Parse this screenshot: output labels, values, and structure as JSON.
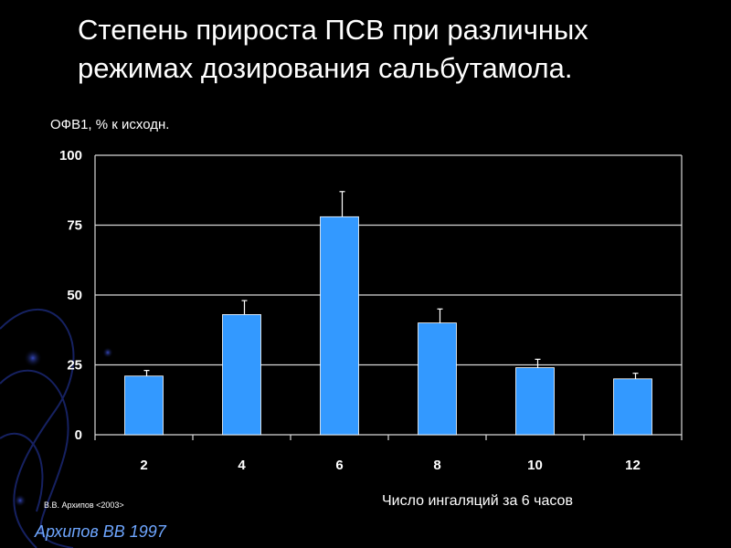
{
  "slide": {
    "title_line1": "Степень прироста ПСВ при различных",
    "title_line2": "режимах дозирования сальбутамола.",
    "credit_small": "В.В. Архипов <2003>",
    "credit_main": "Архипов ВВ 1997",
    "background_color": "#000000",
    "accent_color": "#6ea6ff"
  },
  "chart_data": {
    "type": "bar",
    "title": "",
    "ylabel": "ОФВ1, % к исходн.",
    "xlabel": "Число ингаляций за 6 часов",
    "categories": [
      "2",
      "4",
      "6",
      "8",
      "10",
      "12"
    ],
    "series": [
      {
        "values": [
          21,
          43,
          78,
          40,
          24,
          20
        ],
        "error_upper": [
          23,
          48,
          87,
          45,
          27,
          22
        ],
        "color": "#3399ff"
      }
    ],
    "ylim": [
      0,
      100
    ],
    "yticks": [
      "0",
      "25",
      "50",
      "75",
      "100"
    ],
    "grid": true,
    "legend": "none"
  }
}
